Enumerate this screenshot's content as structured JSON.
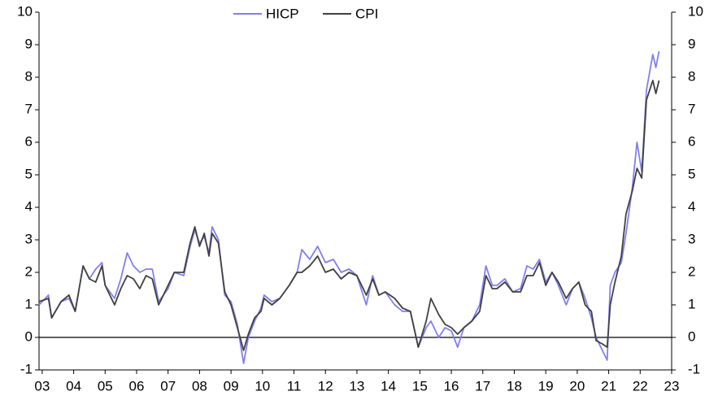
{
  "chart_data": {
    "type": "line",
    "x": [
      2002.9,
      2003.2,
      2003.3,
      2003.6,
      2003.85,
      2004.05,
      2004.3,
      2004.5,
      2004.7,
      2004.9,
      2005.0,
      2005.3,
      2005.5,
      2005.7,
      2005.9,
      2006.1,
      2006.3,
      2006.5,
      2006.7,
      2007.0,
      2007.2,
      2007.5,
      2007.7,
      2007.85,
      2008.0,
      2008.15,
      2008.3,
      2008.4,
      2008.6,
      2008.8,
      2009.0,
      2009.2,
      2009.4,
      2009.55,
      2009.75,
      2009.95,
      2010.05,
      2010.3,
      2010.55,
      2010.85,
      2011.1,
      2011.25,
      2011.5,
      2011.75,
      2012.0,
      2012.25,
      2012.5,
      2012.75,
      2013.0,
      2013.3,
      2013.5,
      2013.7,
      2013.9,
      2014.2,
      2014.45,
      2014.7,
      2014.95,
      2015.2,
      2015.35,
      2015.6,
      2015.8,
      2016.0,
      2016.2,
      2016.4,
      2016.65,
      2016.9,
      2017.1,
      2017.3,
      2017.45,
      2017.7,
      2017.95,
      2018.2,
      2018.4,
      2018.6,
      2018.8,
      2019.0,
      2019.2,
      2019.4,
      2019.65,
      2019.85,
      2020.05,
      2020.25,
      2020.45,
      2020.6,
      2020.8,
      2020.95,
      2021.05,
      2021.2,
      2021.4,
      2021.55,
      2021.75,
      2021.9,
      2022.05,
      2022.2,
      2022.4,
      2022.5,
      2022.6
    ],
    "series": [
      {
        "name": "HICP",
        "color": "#8080ee",
        "values": [
          1.0,
          1.3,
          0.6,
          1.1,
          1.2,
          0.8,
          2.2,
          1.8,
          2.1,
          2.3,
          1.6,
          1.2,
          1.8,
          2.6,
          2.2,
          2.0,
          2.1,
          2.1,
          1.1,
          1.5,
          2.0,
          1.9,
          2.8,
          3.3,
          2.9,
          3.1,
          2.6,
          3.4,
          3.0,
          1.3,
          1.1,
          0.4,
          -0.8,
          0.0,
          0.5,
          0.9,
          1.3,
          1.1,
          1.2,
          1.6,
          2.0,
          2.7,
          2.4,
          2.8,
          2.3,
          2.4,
          2.0,
          2.1,
          1.9,
          1.0,
          1.9,
          1.3,
          1.4,
          1.0,
          0.8,
          0.8,
          -0.3,
          0.3,
          0.5,
          0.0,
          0.3,
          0.2,
          -0.3,
          0.3,
          0.5,
          1.0,
          2.2,
          1.6,
          1.6,
          1.8,
          1.4,
          1.5,
          2.2,
          2.1,
          2.4,
          1.7,
          2.0,
          1.6,
          1.0,
          1.5,
          1.7,
          1.2,
          0.6,
          0.0,
          -0.4,
          -0.7,
          1.6,
          2.0,
          2.3,
          3.2,
          4.6,
          6.0,
          5.1,
          7.6,
          8.7,
          8.3,
          8.8
        ]
      },
      {
        "name": "CPI",
        "color": "#404040",
        "values": [
          1.1,
          1.2,
          0.6,
          1.1,
          1.3,
          0.8,
          2.2,
          1.8,
          1.7,
          2.2,
          1.6,
          1.0,
          1.5,
          1.9,
          1.8,
          1.5,
          1.9,
          1.8,
          1.0,
          1.6,
          2.0,
          2.0,
          2.9,
          3.4,
          2.8,
          3.2,
          2.5,
          3.2,
          2.9,
          1.4,
          1.0,
          0.3,
          -0.4,
          0.1,
          0.6,
          0.8,
          1.2,
          1.0,
          1.2,
          1.6,
          2.0,
          2.0,
          2.2,
          2.5,
          2.0,
          2.1,
          1.8,
          2.0,
          1.9,
          1.3,
          1.8,
          1.3,
          1.4,
          1.2,
          0.9,
          0.8,
          -0.3,
          0.5,
          1.2,
          0.7,
          0.4,
          0.3,
          0.1,
          0.3,
          0.5,
          0.8,
          1.9,
          1.5,
          1.5,
          1.7,
          1.4,
          1.4,
          1.9,
          1.9,
          2.3,
          1.6,
          2.0,
          1.7,
          1.2,
          1.5,
          1.7,
          1.0,
          0.8,
          -0.1,
          -0.2,
          -0.3,
          1.0,
          1.7,
          2.5,
          3.8,
          4.5,
          5.2,
          4.9,
          7.3,
          7.9,
          7.5,
          7.9
        ]
      }
    ],
    "xlim": [
      2002.9,
      2023
    ],
    "xticks": [
      {
        "value": 2003,
        "label": "03"
      },
      {
        "value": 2004,
        "label": "04"
      },
      {
        "value": 2005,
        "label": "05"
      },
      {
        "value": 2006,
        "label": "06"
      },
      {
        "value": 2007,
        "label": "07"
      },
      {
        "value": 2008,
        "label": "08"
      },
      {
        "value": 2009,
        "label": "09"
      },
      {
        "value": 2010,
        "label": "10"
      },
      {
        "value": 2011,
        "label": "11"
      },
      {
        "value": 2012,
        "label": "12"
      },
      {
        "value": 2013,
        "label": "13"
      },
      {
        "value": 2014,
        "label": "14"
      },
      {
        "value": 2015,
        "label": "15"
      },
      {
        "value": 2016,
        "label": "16"
      },
      {
        "value": 2017,
        "label": "17"
      },
      {
        "value": 2018,
        "label": "18"
      },
      {
        "value": 2019,
        "label": "19"
      },
      {
        "value": 2020,
        "label": "20"
      },
      {
        "value": 2021,
        "label": "21"
      },
      {
        "value": 2022,
        "label": "22"
      },
      {
        "value": 2023,
        "label": "23"
      }
    ],
    "ylim": [
      -1,
      10
    ],
    "yticks": [
      -1,
      0,
      1,
      2,
      3,
      4,
      5,
      6,
      7,
      8,
      9,
      10
    ],
    "y2lim": [
      -1,
      10
    ],
    "y2ticks": [
      -1,
      0,
      1,
      2,
      3,
      4,
      5,
      6,
      7,
      8,
      9,
      10
    ],
    "legend": "top"
  }
}
